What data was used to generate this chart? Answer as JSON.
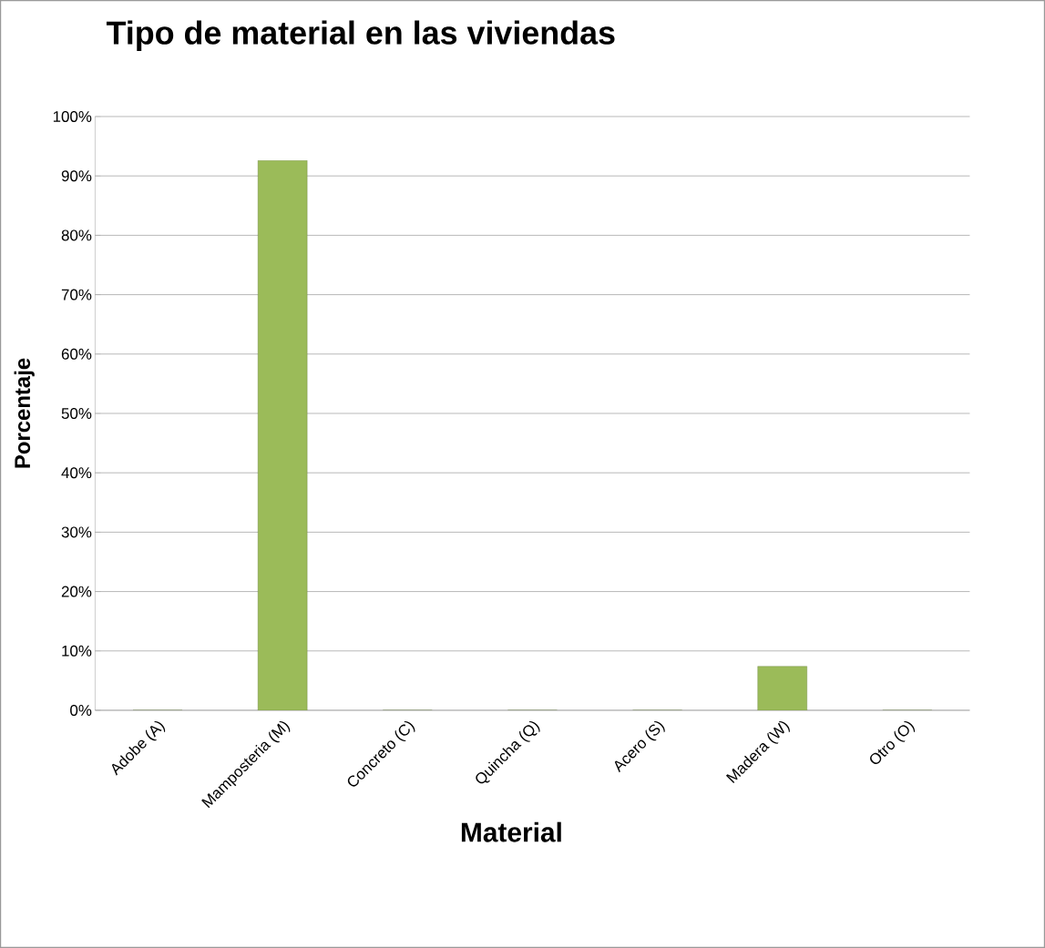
{
  "chart_data": {
    "type": "bar",
    "title": "Tipo de material en las viviendas",
    "xlabel": "Material",
    "ylabel": "Porcentaje",
    "categories": [
      "Adobe (A)",
      "Mamposteria (M)",
      "Concreto (C)",
      "Quincha (Q)",
      "Acero (S)",
      "Madera (W)",
      "Otro (O)"
    ],
    "values": [
      0,
      92.6,
      0,
      0,
      0,
      7.4,
      0
    ],
    "color": "#9bbb59",
    "ylim": [
      0,
      100
    ],
    "yticks": [
      {
        "value": 0,
        "label": "0%"
      },
      {
        "value": 10,
        "label": "10%"
      },
      {
        "value": 20,
        "label": "20%"
      },
      {
        "value": 30,
        "label": "30%"
      },
      {
        "value": 40,
        "label": "40%"
      },
      {
        "value": 50,
        "label": "50%"
      },
      {
        "value": 60,
        "label": "60%"
      },
      {
        "value": 70,
        "label": "70%"
      },
      {
        "value": 80,
        "label": "80%"
      },
      {
        "value": 90,
        "label": "90%"
      },
      {
        "value": 100,
        "label": "100%"
      }
    ],
    "grid": "y"
  }
}
